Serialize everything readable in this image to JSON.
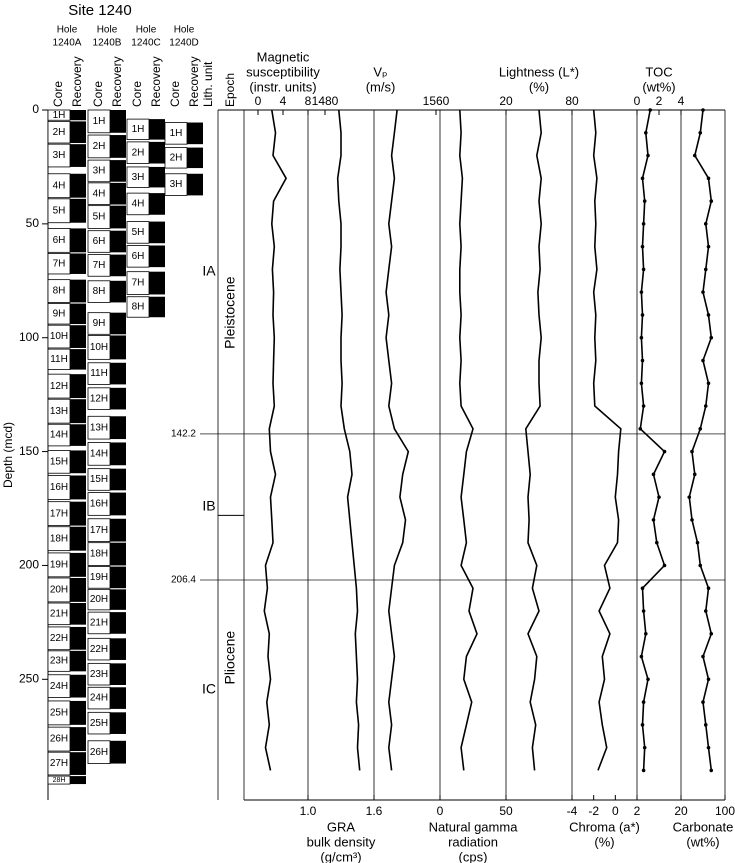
{
  "chart_data": {
    "type": "log",
    "title": "Site 1240",
    "y_label": "Depth (mcd)",
    "ylim": [
      0,
      303
    ],
    "yticks": [
      0,
      50,
      100,
      150,
      200,
      250
    ],
    "holes": [
      {
        "title": "Hole",
        "name": "1240A",
        "core_label": "Core",
        "recovery_label": "Recovery",
        "cores": [
          {
            "name": "1H",
            "top": 0,
            "bottom": 4.5
          },
          {
            "name": "2H",
            "top": 5,
            "bottom": 14.5
          },
          {
            "name": "3H",
            "top": 15,
            "bottom": 25
          },
          {
            "name": "4H",
            "top": 28,
            "bottom": 38.5
          },
          {
            "name": "5H",
            "top": 39,
            "bottom": 49.5
          },
          {
            "name": "6H",
            "top": 52,
            "bottom": 62.5
          },
          {
            "name": "7H",
            "top": 63,
            "bottom": 72
          },
          {
            "name": "8H",
            "top": 74.5,
            "bottom": 84.5
          },
          {
            "name": "9H",
            "top": 85,
            "bottom": 94
          },
          {
            "name": "10H",
            "top": 94.5,
            "bottom": 104.5
          },
          {
            "name": "11H",
            "top": 105,
            "bottom": 114
          },
          {
            "name": "12H",
            "top": 116,
            "bottom": 126.5
          },
          {
            "name": "13H",
            "top": 127,
            "bottom": 137.5
          },
          {
            "name": "14H",
            "top": 138,
            "bottom": 147.5
          },
          {
            "name": "15H",
            "top": 149.5,
            "bottom": 159.5
          },
          {
            "name": "16H",
            "top": 160.5,
            "bottom": 171
          },
          {
            "name": "17H",
            "top": 172,
            "bottom": 182.5
          },
          {
            "name": "18H",
            "top": 183,
            "bottom": 193.5
          },
          {
            "name": "19H",
            "top": 194.5,
            "bottom": 205
          },
          {
            "name": "20H",
            "top": 205.5,
            "bottom": 216
          },
          {
            "name": "21H",
            "top": 216.5,
            "bottom": 226
          },
          {
            "name": "22H",
            "top": 227,
            "bottom": 237
          },
          {
            "name": "23H",
            "top": 237.5,
            "bottom": 246.5
          },
          {
            "name": "24H",
            "top": 248,
            "bottom": 258
          },
          {
            "name": "25H",
            "top": 259.5,
            "bottom": 270
          },
          {
            "name": "26H",
            "top": 271,
            "bottom": 281.5
          },
          {
            "name": "27H",
            "top": 282,
            "bottom": 292
          },
          {
            "name": "28H",
            "top": 292.5,
            "bottom": 296
          }
        ]
      },
      {
        "title": "Hole",
        "name": "1240B",
        "core_label": "Core",
        "recovery_label": "Recovery",
        "cores": [
          {
            "name": "1H",
            "top": 0,
            "bottom": 10
          },
          {
            "name": "2H",
            "top": 11,
            "bottom": 21
          },
          {
            "name": "3H",
            "top": 22,
            "bottom": 31.5
          },
          {
            "name": "4H",
            "top": 32,
            "bottom": 41.5
          },
          {
            "name": "5H",
            "top": 42,
            "bottom": 52
          },
          {
            "name": "6H",
            "top": 53,
            "bottom": 62.5
          },
          {
            "name": "7H",
            "top": 63.5,
            "bottom": 73
          },
          {
            "name": "8H",
            "top": 75,
            "bottom": 84.5
          },
          {
            "name": "9H",
            "top": 89,
            "bottom": 98.5
          },
          {
            "name": "10H",
            "top": 99,
            "bottom": 109.5
          },
          {
            "name": "11H",
            "top": 111,
            "bottom": 120.5
          },
          {
            "name": "12H",
            "top": 122,
            "bottom": 131.5
          },
          {
            "name": "13H",
            "top": 134.5,
            "bottom": 144.5
          },
          {
            "name": "14H",
            "top": 146,
            "bottom": 156
          },
          {
            "name": "15H",
            "top": 157.5,
            "bottom": 167
          },
          {
            "name": "16H",
            "top": 168,
            "bottom": 178
          },
          {
            "name": "17H",
            "top": 179.5,
            "bottom": 189.5
          },
          {
            "name": "18H",
            "top": 190,
            "bottom": 200
          },
          {
            "name": "19H",
            "top": 200.5,
            "bottom": 210
          },
          {
            "name": "20H",
            "top": 210.5,
            "bottom": 219.5
          },
          {
            "name": "21H",
            "top": 220.5,
            "bottom": 230
          },
          {
            "name": "22H",
            "top": 232,
            "bottom": 241.5
          },
          {
            "name": "23H",
            "top": 243,
            "bottom": 252.5
          },
          {
            "name": "24H",
            "top": 253.5,
            "bottom": 263
          },
          {
            "name": "25H",
            "top": 264.5,
            "bottom": 274
          },
          {
            "name": "26H",
            "top": 277,
            "bottom": 287
          }
        ]
      },
      {
        "title": "Hole",
        "name": "1240C",
        "core_label": "Core",
        "recovery_label": "Recovery",
        "cores": [
          {
            "name": "1H",
            "top": 4,
            "bottom": 13
          },
          {
            "name": "2H",
            "top": 14,
            "bottom": 23.5
          },
          {
            "name": "3H",
            "top": 25,
            "bottom": 34
          },
          {
            "name": "4H",
            "top": 36.5,
            "bottom": 46
          },
          {
            "name": "5H",
            "top": 49,
            "bottom": 58.5
          },
          {
            "name": "6H",
            "top": 59.5,
            "bottom": 69
          },
          {
            "name": "7H",
            "top": 71,
            "bottom": 81
          },
          {
            "name": "8H",
            "top": 82,
            "bottom": 91
          }
        ]
      },
      {
        "title": "Hole",
        "name": "1240D",
        "core_label": "Core",
        "recovery_label": "Recovery",
        "cores": [
          {
            "name": "1H",
            "top": 5.5,
            "bottom": 15
          },
          {
            "name": "2H",
            "top": 16.5,
            "bottom": 25.5
          },
          {
            "name": "3H",
            "top": 28,
            "bottom": 37.5
          }
        ]
      }
    ],
    "lith_label": "Lith. unit",
    "units": [
      "IA",
      "IB",
      "IC"
    ],
    "boundaries": [
      142.2,
      206.4
    ],
    "epoch_label": "Epoch",
    "epochs": [
      "Pleistocene",
      "Pliocene"
    ],
    "epoch_boundaries": [
      178
    ],
    "depth": [
      0,
      10,
      20,
      30,
      40,
      50,
      60,
      70,
      80,
      90,
      100,
      110,
      120,
      130,
      140,
      150,
      160,
      170,
      180,
      190,
      200,
      210,
      220,
      230,
      240,
      250,
      260,
      270,
      280,
      290
    ],
    "tracks": [
      {
        "title": [
          "Magnetic",
          "susceptibility",
          "(instr. units)"
        ],
        "axis": "top",
        "xlim": [
          0,
          8
        ],
        "xticks": [
          0,
          4,
          8
        ],
        "color": "#000000",
        "markers": false,
        "values": [
          2.2,
          2.8,
          2.4,
          4.5,
          2.5,
          2.2,
          2.6,
          2.3,
          2.5,
          2.4,
          2.6,
          2.5,
          2.4,
          2.6,
          1.8,
          2.0,
          2.8,
          2.0,
          2.2,
          2.4,
          1.2,
          1.5,
          1.0,
          1.8,
          1.6,
          2.0,
          1.4,
          1.8,
          1.2,
          2.0
        ]
      },
      {
        "title": [
          "GRA",
          "bulk density",
          "(g/cm³)"
        ],
        "axis": "bottom",
        "xlim": [
          1.0,
          1.6
        ],
        "xticks": [
          {
            "value": 1,
            "label": "1.0"
          },
          1.6
        ],
        "color": "#000000",
        "markers": false,
        "values": [
          1.28,
          1.3,
          1.3,
          1.27,
          1.28,
          1.3,
          1.3,
          1.29,
          1.3,
          1.31,
          1.3,
          1.3,
          1.31,
          1.3,
          1.33,
          1.38,
          1.4,
          1.36,
          1.38,
          1.4,
          1.42,
          1.44,
          1.45,
          1.43,
          1.44,
          1.45,
          1.44,
          1.46,
          1.45,
          1.47
        ]
      },
      {
        "title": [
          "Vₚ",
          "(m/s)"
        ],
        "axis": "top",
        "xlim": [
          1480,
          1560
        ],
        "xticks": [
          1480,
          1560
        ],
        "color": "#000000",
        "markers": false,
        "values": [
          1532,
          1530,
          1528,
          1530,
          1528,
          1526,
          1528,
          1526,
          1524,
          1526,
          1524,
          1526,
          1528,
          1526,
          1530,
          1540,
          1536,
          1534,
          1538,
          1536,
          1530,
          1528,
          1526,
          1528,
          1530,
          1528,
          1526,
          1528,
          1526,
          1528
        ]
      },
      {
        "title": [
          "Natural gamma",
          "radiation",
          "(cps)"
        ],
        "axis": "bottom",
        "xlim": [
          0,
          50
        ],
        "xticks": [
          0,
          50
        ],
        "color": "#000000",
        "markers": false,
        "values": [
          15,
          16,
          15,
          17,
          16,
          15,
          16,
          15,
          15,
          16,
          15,
          16,
          15,
          16,
          25,
          20,
          18,
          16,
          18,
          20,
          16,
          25,
          22,
          28,
          20,
          18,
          24,
          20,
          16,
          18
        ]
      },
      {
        "title": [
          "Lightness (L*)",
          "(%)"
        ],
        "axis": "top",
        "xlim": [
          20,
          80
        ],
        "xticks": [
          20,
          80
        ],
        "color": "#000000",
        "markers": false,
        "values": [
          50,
          52,
          48,
          52,
          50,
          52,
          50,
          51,
          49,
          50,
          52,
          50,
          50,
          51,
          38,
          40,
          42,
          40,
          41,
          40,
          48,
          44,
          50,
          40,
          48,
          46,
          42,
          47,
          44,
          46
        ]
      },
      {
        "title": [
          "Chroma (a*)",
          "(%)"
        ],
        "axis": "bottom",
        "xlim": [
          -4,
          2
        ],
        "xticks": [
          -4,
          -2,
          0,
          2
        ],
        "color": "#000000",
        "markers": false,
        "values": [
          -2,
          -1.8,
          -2,
          -1.7,
          -1.9,
          -1.8,
          -1.9,
          -1.7,
          -2,
          -1.8,
          -1.9,
          -1.8,
          -2,
          -1.9,
          0.5,
          0.3,
          0.2,
          0,
          0.3,
          0.2,
          -1,
          -0.5,
          -1.5,
          -0.5,
          -1.2,
          -1,
          -1.5,
          -1.2,
          -0.8,
          -1.6
        ]
      },
      {
        "title": [
          "TOC",
          "(wt%)"
        ],
        "axis": "top",
        "xlim": [
          0,
          4
        ],
        "xticks": [
          0,
          2,
          4
        ],
        "color": "#000000",
        "markers": true,
        "values": [
          1.2,
          0.8,
          1.0,
          0.5,
          0.7,
          0.6,
          0.5,
          0.6,
          0.4,
          0.5,
          0.4,
          0.5,
          0.4,
          0.6,
          0.3,
          2.5,
          1.5,
          2.0,
          1.5,
          1.8,
          2.5,
          0.5,
          0.6,
          0.8,
          0.4,
          1.0,
          0.6,
          0.5,
          0.7,
          0.6
        ]
      },
      {
        "title": [
          "Carbonate",
          "(wt%)"
        ],
        "axis": "bottom",
        "xlim": [
          20,
          100
        ],
        "xticks": [
          20,
          100
        ],
        "color": "#000000",
        "markers": true,
        "values": [
          60,
          55,
          45,
          70,
          75,
          65,
          70,
          65,
          60,
          70,
          75,
          60,
          70,
          65,
          55,
          40,
          45,
          35,
          40,
          50,
          55,
          70,
          65,
          75,
          60,
          70,
          60,
          65,
          70,
          75
        ]
      }
    ]
  }
}
